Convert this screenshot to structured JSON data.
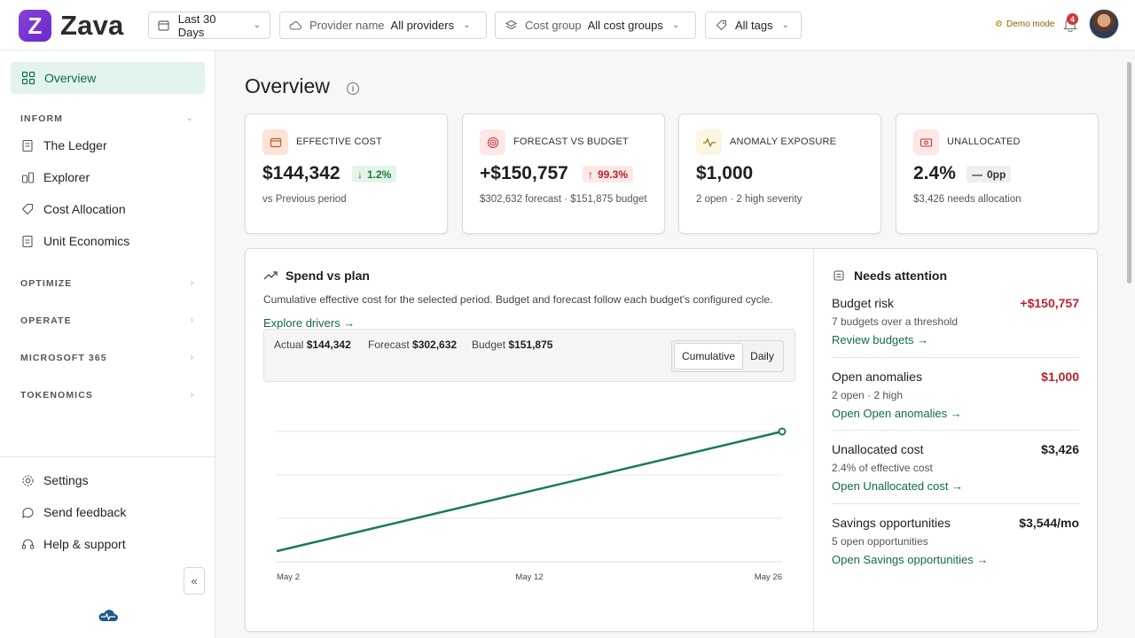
{
  "brand": {
    "mark": "Z",
    "name": "Zava"
  },
  "filters": {
    "date": {
      "value": "Last 30 Days"
    },
    "provider": {
      "label": "Provider name",
      "value": "All providers"
    },
    "cost_group": {
      "label": "Cost group",
      "value": "All cost groups"
    },
    "tags": {
      "value": "All tags"
    }
  },
  "demo_mode": "Demo mode",
  "notifications_count": "4",
  "sidebar": {
    "overview": "Overview",
    "sections": {
      "inform": "INFORM",
      "optimize": "OPTIMIZE",
      "operate": "OPERATE",
      "m365": "MICROSOFT 365",
      "tokenomics": "TOKENOMICS"
    },
    "inform_items": [
      "The Ledger",
      "Explorer",
      "Cost Allocation",
      "Unit Economics"
    ],
    "footer_items": [
      "Settings",
      "Send feedback",
      "Help & support"
    ]
  },
  "page": {
    "title": "Overview"
  },
  "kpis": [
    {
      "title": "EFFECTIVE COST",
      "value": "$144,342",
      "badge": "1.2%",
      "badge_dir": "down",
      "sub": "vs Previous period",
      "accent": "#fbe3d6"
    },
    {
      "title": "FORECAST VS BUDGET",
      "value": "+$150,757",
      "badge": "99.3%",
      "badge_dir": "up",
      "sub": "$302,632 forecast · $151,875 budget",
      "accent": "#fde7e7"
    },
    {
      "title": "ANOMALY EXPOSURE",
      "value": "$1,000",
      "badge": "",
      "sub": "2 open · 2 high severity",
      "accent": "#fbf6e0"
    },
    {
      "title": "UNALLOCATED",
      "value": "2.4%",
      "badge": "0pp",
      "badge_dir": "flat",
      "sub": "$3,426 needs allocation",
      "accent": "#fde7e7"
    }
  ],
  "spend": {
    "title": "Spend vs plan",
    "description": "Cumulative effective cost for the selected period. Budget and forecast follow each budget's configured cycle.",
    "link": "Explore drivers →",
    "legend": {
      "actual_label": "Actual",
      "actual_value": "$144,342",
      "forecast_label": "Forecast",
      "forecast_value": "$302,632",
      "budget_label": "Budget",
      "budget_value": "$151,875"
    },
    "toggle": {
      "cumulative": "Cumulative",
      "daily": "Daily",
      "selected": "cumulative"
    }
  },
  "chart_data": {
    "type": "line",
    "x": [
      "May 2",
      "May 26"
    ],
    "xticks": [
      "May 2",
      "May 12",
      "May 26"
    ],
    "series": [
      {
        "values": [
          0,
          144342
        ],
        "color": "#1a7a5e"
      }
    ],
    "grid": true
  },
  "attention": {
    "title": "Needs attention",
    "items": [
      {
        "title": "Budget risk",
        "value": "+$150,757",
        "value_color": "#b4232a",
        "sub": "7 budgets over a threshold",
        "link": "Review budgets →"
      },
      {
        "title": "Open anomalies",
        "value": "$1,000",
        "value_color": "#b4232a",
        "sub": "2 open · 2 high",
        "link": "Open Open anomalies →"
      },
      {
        "title": "Unallocated cost",
        "value": "$3,426",
        "value_color": "#1f1f1f",
        "sub": "2.4% of effective cost",
        "link": "Open Unallocated cost →"
      },
      {
        "title": "Savings opportunities",
        "value": "$3,544/mo",
        "value_color": "#1f1f1f",
        "sub": "5 open opportunities",
        "link": "Open Savings opportunities →"
      }
    ]
  },
  "colors": {
    "accent": "#116b4a",
    "active_bg": "#e3f4ec",
    "danger": "#b4232a",
    "line": "#1a7a5e"
  }
}
